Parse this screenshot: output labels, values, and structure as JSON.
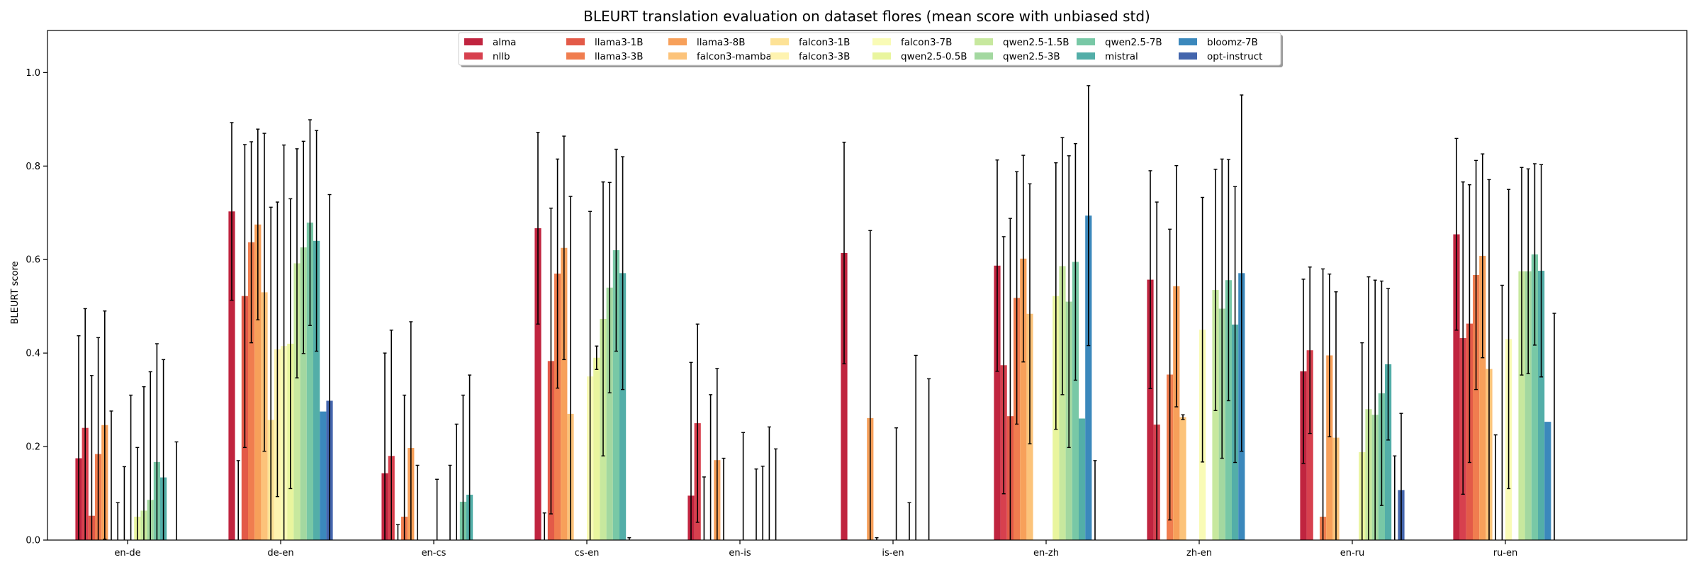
{
  "chart_data": {
    "type": "bar",
    "title": "BLEURT translation evaluation on dataset flores (mean score with unbiased std)",
    "xlabel": "",
    "ylabel": "BLEURT score",
    "ylim": [
      0,
      1.09
    ],
    "yticks": [
      0.0,
      0.2,
      0.4,
      0.6,
      0.8,
      1.0
    ],
    "ytick_labels": [
      "0.0",
      "0.2",
      "0.4",
      "0.6",
      "0.8",
      "1.0"
    ],
    "grid": false,
    "legend_position": "top-center",
    "categories": [
      "en-de",
      "de-en",
      "en-cs",
      "cs-en",
      "en-is",
      "is-en",
      "en-zh",
      "zh-en",
      "en-ru",
      "ru-en"
    ],
    "series": [
      {
        "name": "alma",
        "color": "#c0243f",
        "values": [
          0.175,
          0.703,
          0.143,
          0.667,
          0.095,
          0.614,
          0.587,
          0.557,
          0.361,
          0.654
        ],
        "errors": [
          0.262,
          0.19,
          0.257,
          0.205,
          0.285,
          0.237,
          0.226,
          0.233,
          0.197,
          0.205
        ]
      },
      {
        "name": "nllb",
        "color": "#d7404e",
        "values": [
          0.24,
          0.0,
          0.18,
          0.0,
          0.25,
          0.0,
          0.374,
          0.247,
          0.406,
          0.432
        ],
        "errors": [
          0.255,
          0.17,
          0.269,
          0.058,
          0.212,
          0.0,
          0.275,
          0.476,
          0.178,
          0.334
        ]
      },
      {
        "name": "llama3-1B",
        "color": "#e35a48",
        "values": [
          0.052,
          0.522,
          0.0,
          0.383,
          0.0,
          0.0,
          0.265,
          0.0,
          0.0,
          0.463
        ],
        "errors": [
          0.3,
          0.324,
          0.033,
          0.327,
          0.135,
          0.0,
          0.423,
          0.0,
          0.0,
          0.297
        ]
      },
      {
        "name": "llama3-3B",
        "color": "#f07d4f",
        "values": [
          0.184,
          0.637,
          0.05,
          0.57,
          0.0,
          0.0,
          0.518,
          0.354,
          0.05,
          0.567
        ],
        "errors": [
          0.249,
          0.215,
          0.26,
          0.245,
          0.311,
          0.0,
          0.27,
          0.311,
          0.53,
          0.245
        ]
      },
      {
        "name": "llama3-8B",
        "color": "#f7a05a",
        "values": [
          0.246,
          0.675,
          0.197,
          0.625,
          0.171,
          0.261,
          0.602,
          0.543,
          0.395,
          0.608
        ],
        "errors": [
          0.244,
          0.204,
          0.27,
          0.239,
          0.196,
          0.401,
          0.221,
          0.258,
          0.174,
          0.218
        ]
      },
      {
        "name": "falcon3-mamba",
        "color": "#fcc37a",
        "values": [
          0.0,
          0.53,
          0.0,
          0.27,
          0.0,
          0.0,
          0.484,
          0.263,
          0.219,
          0.366
        ],
        "errors": [
          0.276,
          0.34,
          0.16,
          0.465,
          0.175,
          0.005,
          0.278,
          0.005,
          0.312,
          0.405
        ]
      },
      {
        "name": "falcon3-1B",
        "color": "#fde296",
        "values": [
          0.0,
          0.257,
          0.0,
          0.0,
          0.0,
          0.0,
          0.0,
          0.0,
          0.0,
          0.0
        ],
        "errors": [
          0.08,
          0.455,
          0.0,
          0.0,
          0.0,
          0.0,
          0.0,
          0.0,
          0.0,
          0.225
        ]
      },
      {
        "name": "falcon3-3B",
        "color": "#fef3b0",
        "values": [
          0.0,
          0.408,
          0.0,
          0.0,
          0.0,
          0.0,
          0.0,
          0.0,
          0.0,
          0.0
        ],
        "errors": [
          0.157,
          0.315,
          0.0,
          0.0,
          0.0,
          0.0,
          0.0,
          0.0,
          0.0,
          0.545
        ]
      },
      {
        "name": "falcon3-7B",
        "color": "#f9fbb6",
        "values": [
          0.0,
          0.415,
          0.0,
          0.35,
          0.0,
          0.0,
          0.0,
          0.45,
          0.0,
          0.43
        ],
        "errors": [
          0.31,
          0.43,
          0.13,
          0.353,
          0.23,
          0.24,
          0.0,
          0.283,
          0.0,
          0.32
        ]
      },
      {
        "name": "qwen2.5-0.5B",
        "color": "#e9f59e",
        "values": [
          0.05,
          0.42,
          0.0,
          0.39,
          0.0,
          0.0,
          0.522,
          0.0,
          0.188,
          0.0
        ],
        "errors": [
          0.148,
          0.31,
          0.0,
          0.025,
          0.0,
          0.0,
          0.285,
          0.0,
          0.234,
          0.0
        ]
      },
      {
        "name": "qwen2.5-1.5B",
        "color": "#c7e89e",
        "values": [
          0.063,
          0.592,
          0.0,
          0.473,
          0.0,
          0.0,
          0.586,
          0.535,
          0.28,
          0.575
        ],
        "errors": [
          0.265,
          0.245,
          0.16,
          0.293,
          0.152,
          0.08,
          0.275,
          0.258,
          0.283,
          0.222
        ]
      },
      {
        "name": "qwen2.5-3B",
        "color": "#a3d8a0",
        "values": [
          0.086,
          0.626,
          0.0,
          0.54,
          0.0,
          0.0,
          0.51,
          0.495,
          0.268,
          0.575
        ],
        "errors": [
          0.274,
          0.227,
          0.248,
          0.225,
          0.158,
          0.395,
          0.312,
          0.32,
          0.288,
          0.219
        ]
      },
      {
        "name": "qwen2.5-7B",
        "color": "#78c8a6",
        "values": [
          0.167,
          0.679,
          0.082,
          0.62,
          0.0,
          0.0,
          0.595,
          0.556,
          0.314,
          0.611
        ],
        "errors": [
          0.253,
          0.22,
          0.228,
          0.216,
          0.242,
          0.0,
          0.253,
          0.258,
          0.24,
          0.194
        ]
      },
      {
        "name": "mistral",
        "color": "#53aea8",
        "values": [
          0.134,
          0.64,
          0.097,
          0.571,
          0.0,
          0.0,
          0.26,
          0.461,
          0.376,
          0.576
        ],
        "errors": [
          0.252,
          0.236,
          0.256,
          0.249,
          0.195,
          0.345,
          0.0,
          0.295,
          0.162,
          0.227
        ]
      },
      {
        "name": "bloomz-7B",
        "color": "#3b88bc",
        "values": [
          0.0,
          0.275,
          0.0,
          0.0,
          0.0,
          0.0,
          0.694,
          0.571,
          0.0,
          0.253
        ],
        "errors": [
          0.0,
          0.0,
          0.0,
          0.005,
          0.0,
          0.0,
          0.278,
          0.381,
          0.18,
          0.0
        ]
      },
      {
        "name": "opt-instruct",
        "color": "#4365ad",
        "values": [
          0.0,
          0.298,
          0.0,
          0.0,
          0.0,
          0.0,
          0.0,
          0.0,
          0.107,
          0.0
        ],
        "errors": [
          0.21,
          0.441,
          0.0,
          0.0,
          0.0,
          0.0,
          0.17,
          0.0,
          0.164,
          0.485
        ]
      }
    ]
  }
}
